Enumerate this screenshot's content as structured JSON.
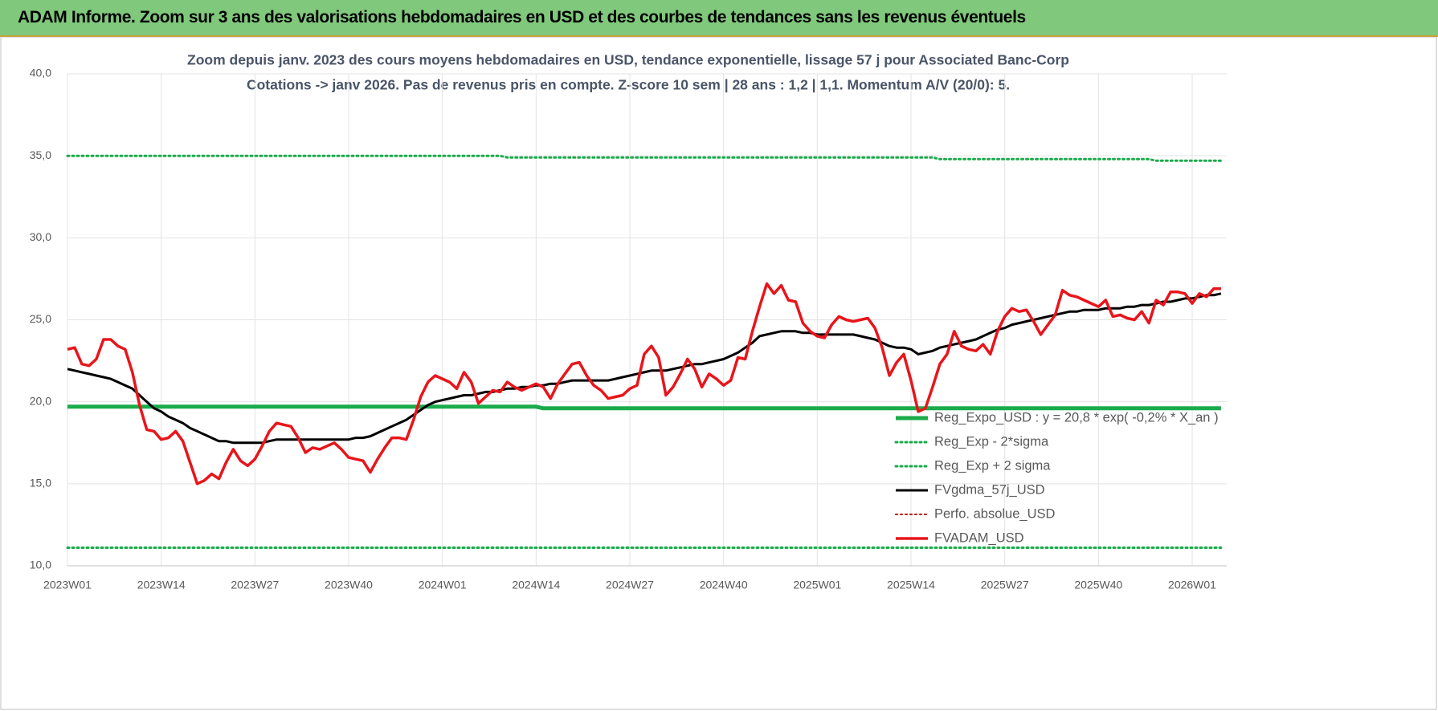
{
  "header": {
    "title": "ADAM Informe. Zoom sur 3 ans des valorisations hebdomadaires en USD et des courbes de tendances sans les revenus éventuels"
  },
  "chart_data": {
    "type": "line",
    "title": "Zoom depuis janv. 2023 des cours moyens hebdomadaires en USD, tendance exponentielle, lissage 57 j pour Associated Banc-Corp",
    "subtitle": "Cotations -> janv 2026. Pas de revenus pris en compte. Z-score 10 sem | 28 ans : 1,2 | 1,1. Momentum A/V (20/0): 5.",
    "ylim": [
      10,
      40
    ],
    "yticks": [
      {
        "value": 10,
        "label": "10,0"
      },
      {
        "value": 15,
        "label": "15,0"
      },
      {
        "value": 20,
        "label": "20,0"
      },
      {
        "value": 25,
        "label": "25,0"
      },
      {
        "value": 30,
        "label": "30,0"
      },
      {
        "value": 35,
        "label": "35,0"
      },
      {
        "value": 40,
        "label": "40,0"
      }
    ],
    "grid": true,
    "legend": "lower right",
    "categories": [
      "2023W01",
      null,
      null,
      null,
      null,
      null,
      null,
      null,
      null,
      null,
      null,
      null,
      null,
      "2023W14",
      null,
      null,
      null,
      null,
      null,
      null,
      null,
      null,
      null,
      null,
      null,
      null,
      "2023W27",
      null,
      null,
      null,
      null,
      null,
      null,
      null,
      null,
      null,
      null,
      null,
      null,
      "2023W40",
      null,
      null,
      null,
      null,
      null,
      null,
      null,
      null,
      null,
      null,
      null,
      null,
      "2024W01",
      null,
      null,
      null,
      null,
      null,
      null,
      null,
      null,
      null,
      null,
      null,
      null,
      "2024W14",
      null,
      null,
      null,
      null,
      null,
      null,
      null,
      null,
      null,
      null,
      null,
      null,
      "2024W27",
      null,
      null,
      null,
      null,
      null,
      null,
      null,
      null,
      null,
      null,
      null,
      null,
      "2024W40",
      null,
      null,
      null,
      null,
      null,
      null,
      null,
      null,
      null,
      null,
      null,
      null,
      "2025W01",
      null,
      null,
      null,
      null,
      null,
      null,
      null,
      null,
      null,
      null,
      null,
      null,
      "2025W14",
      null,
      null,
      null,
      null,
      null,
      null,
      null,
      null,
      null,
      null,
      null,
      null,
      "2025W27",
      null,
      null,
      null,
      null,
      null,
      null,
      null,
      null,
      null,
      null,
      null,
      null,
      "2025W40",
      null,
      null,
      null,
      null,
      null,
      null,
      null,
      null,
      null,
      null,
      null,
      null,
      "2026W01",
      null,
      null,
      null,
      null
    ],
    "series": [
      {
        "name": "Reg_Expo_USD : y = 20,8 * exp( -0,2% *  X_an )",
        "color": "#1aab4b",
        "style": "solid",
        "width": 5,
        "values": [
          19.7,
          19.7,
          19.7,
          19.7,
          19.7,
          19.7,
          19.7,
          19.7,
          19.7,
          19.7,
          19.7,
          19.7,
          19.7,
          19.7,
          19.7,
          19.7,
          19.7,
          19.7,
          19.7,
          19.7,
          19.7,
          19.7,
          19.7,
          19.7,
          19.7,
          19.7,
          19.7,
          19.7,
          19.7,
          19.7,
          19.7,
          19.7,
          19.7,
          19.7,
          19.7,
          19.7,
          19.7,
          19.7,
          19.7,
          19.7,
          19.7,
          19.7,
          19.7,
          19.7,
          19.7,
          19.7,
          19.7,
          19.7,
          19.7,
          19.7,
          19.7,
          19.7,
          19.7,
          19.7,
          19.7,
          19.7,
          19.7,
          19.7,
          19.7,
          19.7,
          19.7,
          19.7,
          19.7,
          19.7,
          19.7,
          19.7,
          19.6,
          19.6,
          19.6,
          19.6,
          19.6,
          19.6,
          19.6,
          19.6,
          19.6,
          19.6,
          19.6,
          19.6,
          19.6,
          19.6,
          19.6,
          19.6,
          19.6,
          19.6,
          19.6,
          19.6,
          19.6,
          19.6,
          19.6,
          19.6,
          19.6,
          19.6,
          19.6,
          19.6,
          19.6,
          19.6,
          19.6,
          19.6,
          19.6,
          19.6,
          19.6,
          19.6,
          19.6,
          19.6,
          19.6,
          19.6,
          19.6,
          19.6,
          19.6,
          19.6,
          19.6,
          19.6,
          19.6,
          19.6,
          19.6,
          19.6,
          19.6,
          19.6,
          19.6,
          19.6,
          19.6,
          19.6,
          19.6,
          19.6,
          19.6,
          19.6,
          19.6,
          19.6,
          19.6,
          19.6,
          19.6,
          19.6,
          19.6,
          19.6,
          19.6,
          19.6,
          19.6,
          19.6,
          19.6,
          19.6,
          19.6,
          19.6,
          19.6,
          19.6,
          19.6,
          19.6,
          19.6,
          19.6,
          19.6,
          19.6,
          19.6,
          19.6,
          19.6,
          19.6,
          19.6,
          19.6,
          19.6,
          19.6,
          19.6,
          19.6,
          19.6
        ]
      },
      {
        "name": "Reg_Exp - 2*sigma",
        "color": "#1aab4b",
        "style": "dotted",
        "width": 3,
        "values": [
          11.1,
          11.1,
          11.1,
          11.1,
          11.1,
          11.1,
          11.1,
          11.1,
          11.1,
          11.1,
          11.1,
          11.1,
          11.1,
          11.1,
          11.1,
          11.1,
          11.1,
          11.1,
          11.1,
          11.1,
          11.1,
          11.1,
          11.1,
          11.1,
          11.1,
          11.1,
          11.1,
          11.1,
          11.1,
          11.1,
          11.1,
          11.1,
          11.1,
          11.1,
          11.1,
          11.1,
          11.1,
          11.1,
          11.1,
          11.1,
          11.1,
          11.1,
          11.1,
          11.1,
          11.1,
          11.1,
          11.1,
          11.1,
          11.1,
          11.1,
          11.1,
          11.1,
          11.1,
          11.1,
          11.1,
          11.1,
          11.1,
          11.1,
          11.1,
          11.1,
          11.1,
          11.1,
          11.1,
          11.1,
          11.1,
          11.1,
          11.1,
          11.1,
          11.1,
          11.1,
          11.1,
          11.1,
          11.1,
          11.1,
          11.1,
          11.1,
          11.1,
          11.1,
          11.1,
          11.1,
          11.1,
          11.1,
          11.1,
          11.1,
          11.1,
          11.1,
          11.1,
          11.1,
          11.1,
          11.1,
          11.1,
          11.1,
          11.1,
          11.1,
          11.1,
          11.1,
          11.1,
          11.1,
          11.1,
          11.1,
          11.1,
          11.1,
          11.1,
          11.1,
          11.1,
          11.1,
          11.1,
          11.1,
          11.1,
          11.1,
          11.1,
          11.1,
          11.1,
          11.1,
          11.1,
          11.1,
          11.1,
          11.1,
          11.1,
          11.1,
          11.1,
          11.1,
          11.1,
          11.1,
          11.1,
          11.1,
          11.1,
          11.1,
          11.1,
          11.1,
          11.1,
          11.1,
          11.1,
          11.1,
          11.1,
          11.1,
          11.1,
          11.1,
          11.1,
          11.1,
          11.1,
          11.1,
          11.1,
          11.1,
          11.1,
          11.1,
          11.1,
          11.1,
          11.1,
          11.1,
          11.1,
          11.1,
          11.1,
          11.1,
          11.1,
          11.1,
          11.1,
          11.1,
          11.1,
          11.1,
          11.1
        ]
      },
      {
        "name": "Reg_Exp + 2 sigma",
        "color": "#1aab4b",
        "style": "dotted",
        "width": 3,
        "values": [
          35.0,
          35.0,
          35.0,
          35.0,
          35.0,
          35.0,
          35.0,
          35.0,
          35.0,
          35.0,
          35.0,
          35.0,
          35.0,
          35.0,
          35.0,
          35.0,
          35.0,
          35.0,
          35.0,
          35.0,
          35.0,
          35.0,
          35.0,
          35.0,
          35.0,
          35.0,
          35.0,
          35.0,
          35.0,
          35.0,
          35.0,
          35.0,
          35.0,
          35.0,
          35.0,
          35.0,
          35.0,
          35.0,
          35.0,
          35.0,
          35.0,
          35.0,
          35.0,
          35.0,
          35.0,
          35.0,
          35.0,
          35.0,
          35.0,
          35.0,
          35.0,
          35.0,
          35.0,
          35.0,
          35.0,
          35.0,
          35.0,
          35.0,
          35.0,
          35.0,
          35.0,
          34.9,
          34.9,
          34.9,
          34.9,
          34.9,
          34.9,
          34.9,
          34.9,
          34.9,
          34.9,
          34.9,
          34.9,
          34.9,
          34.9,
          34.9,
          34.9,
          34.9,
          34.9,
          34.9,
          34.9,
          34.9,
          34.9,
          34.9,
          34.9,
          34.9,
          34.9,
          34.9,
          34.9,
          34.9,
          34.9,
          34.9,
          34.9,
          34.9,
          34.9,
          34.9,
          34.9,
          34.9,
          34.9,
          34.9,
          34.9,
          34.9,
          34.9,
          34.9,
          34.9,
          34.9,
          34.9,
          34.9,
          34.9,
          34.9,
          34.9,
          34.9,
          34.9,
          34.9,
          34.9,
          34.9,
          34.9,
          34.9,
          34.9,
          34.9,
          34.9,
          34.8,
          34.8,
          34.8,
          34.8,
          34.8,
          34.8,
          34.8,
          34.8,
          34.8,
          34.8,
          34.8,
          34.8,
          34.8,
          34.8,
          34.8,
          34.8,
          34.8,
          34.8,
          34.8,
          34.8,
          34.8,
          34.8,
          34.8,
          34.8,
          34.8,
          34.8,
          34.8,
          34.8,
          34.8,
          34.8,
          34.7,
          34.7,
          34.7,
          34.7,
          34.7,
          34.7,
          34.7,
          34.7,
          34.7,
          34.7
        ]
      },
      {
        "name": "FVgdma_57j_USD",
        "color": "#000000",
        "style": "solid",
        "width": 3,
        "values": [
          22.0,
          21.9,
          21.8,
          21.7,
          21.6,
          21.5,
          21.4,
          21.2,
          21.0,
          20.8,
          20.4,
          20.0,
          19.6,
          19.4,
          19.1,
          18.9,
          18.7,
          18.4,
          18.2,
          18.0,
          17.8,
          17.6,
          17.6,
          17.5,
          17.5,
          17.5,
          17.5,
          17.5,
          17.6,
          17.7,
          17.7,
          17.7,
          17.7,
          17.7,
          17.7,
          17.7,
          17.7,
          17.7,
          17.7,
          17.7,
          17.8,
          17.8,
          17.9,
          18.1,
          18.3,
          18.5,
          18.7,
          18.9,
          19.2,
          19.5,
          19.8,
          20.0,
          20.1,
          20.2,
          20.3,
          20.4,
          20.4,
          20.5,
          20.6,
          20.6,
          20.7,
          20.8,
          20.8,
          20.9,
          20.9,
          21.0,
          21.0,
          21.1,
          21.1,
          21.2,
          21.3,
          21.3,
          21.3,
          21.3,
          21.3,
          21.3,
          21.4,
          21.5,
          21.6,
          21.7,
          21.8,
          21.9,
          21.9,
          21.9,
          22.0,
          22.1,
          22.2,
          22.3,
          22.3,
          22.4,
          22.5,
          22.6,
          22.8,
          23.0,
          23.3,
          23.6,
          24.0,
          24.1,
          24.2,
          24.3,
          24.3,
          24.3,
          24.2,
          24.2,
          24.1,
          24.1,
          24.1,
          24.1,
          24.1,
          24.1,
          24.0,
          23.9,
          23.8,
          23.6,
          23.4,
          23.3,
          23.3,
          23.2,
          22.9,
          23.0,
          23.1,
          23.3,
          23.4,
          23.5,
          23.6,
          23.7,
          23.8,
          24.0,
          24.2,
          24.4,
          24.5,
          24.7,
          24.8,
          24.9,
          25.0,
          25.1,
          25.2,
          25.3,
          25.4,
          25.5,
          25.5,
          25.6,
          25.6,
          25.6,
          25.7,
          25.7,
          25.7,
          25.8,
          25.8,
          25.9,
          25.9,
          26.0,
          26.1,
          26.1,
          26.2,
          26.3,
          26.3,
          26.4,
          26.5,
          26.5,
          26.6
        ]
      },
      {
        "name": "Perfo. absolue_USD",
        "color": "#c00000",
        "style": "dotted",
        "width": 2
      },
      {
        "name": "FVADAM_USD",
        "color": "#e8151b",
        "style": "solid",
        "width": 3.5,
        "values": [
          23.2,
          23.3,
          22.3,
          22.2,
          22.6,
          23.8,
          23.8,
          23.4,
          23.2,
          21.8,
          19.8,
          18.3,
          18.2,
          17.7,
          17.8,
          18.2,
          17.6,
          16.3,
          15.0,
          15.2,
          15.6,
          15.3,
          16.3,
          17.1,
          16.4,
          16.1,
          16.5,
          17.3,
          18.2,
          18.7,
          18.6,
          18.5,
          17.8,
          16.9,
          17.2,
          17.1,
          17.3,
          17.5,
          17.1,
          16.6,
          16.5,
          16.4,
          15.7,
          16.5,
          17.2,
          17.8,
          17.8,
          17.7,
          18.9,
          20.3,
          21.2,
          21.6,
          21.4,
          21.2,
          20.8,
          21.8,
          21.2,
          19.9,
          20.3,
          20.7,
          20.6,
          21.2,
          20.9,
          20.7,
          20.9,
          21.1,
          20.9,
          20.2,
          21.1,
          21.7,
          22.3,
          22.4,
          21.6,
          21.0,
          20.7,
          20.2,
          20.3,
          20.4,
          20.8,
          21.0,
          22.9,
          23.4,
          22.7,
          20.4,
          20.9,
          21.7,
          22.6,
          22.0,
          20.9,
          21.7,
          21.4,
          21.0,
          21.3,
          22.7,
          22.6,
          24.3,
          25.8,
          27.2,
          26.6,
          27.1,
          26.2,
          26.1,
          24.8,
          24.3,
          24.0,
          23.9,
          24.7,
          25.2,
          25.0,
          24.9,
          25.0,
          25.1,
          24.5,
          23.3,
          21.6,
          22.4,
          22.9,
          21.3,
          19.4,
          19.6,
          20.9,
          22.3,
          22.9,
          24.3,
          23.4,
          23.2,
          23.1,
          23.5,
          22.9,
          24.3,
          25.2,
          25.7,
          25.5,
          25.6,
          24.9,
          24.1,
          24.7,
          25.3,
          26.8,
          26.5,
          26.4,
          26.2,
          26.0,
          25.8,
          26.2,
          25.2,
          25.3,
          25.1,
          25.0,
          25.5,
          24.8,
          26.2,
          25.9,
          26.7,
          26.7,
          26.6,
          26.0,
          26.6,
          26.4,
          26.9,
          26.9
        ]
      }
    ]
  }
}
